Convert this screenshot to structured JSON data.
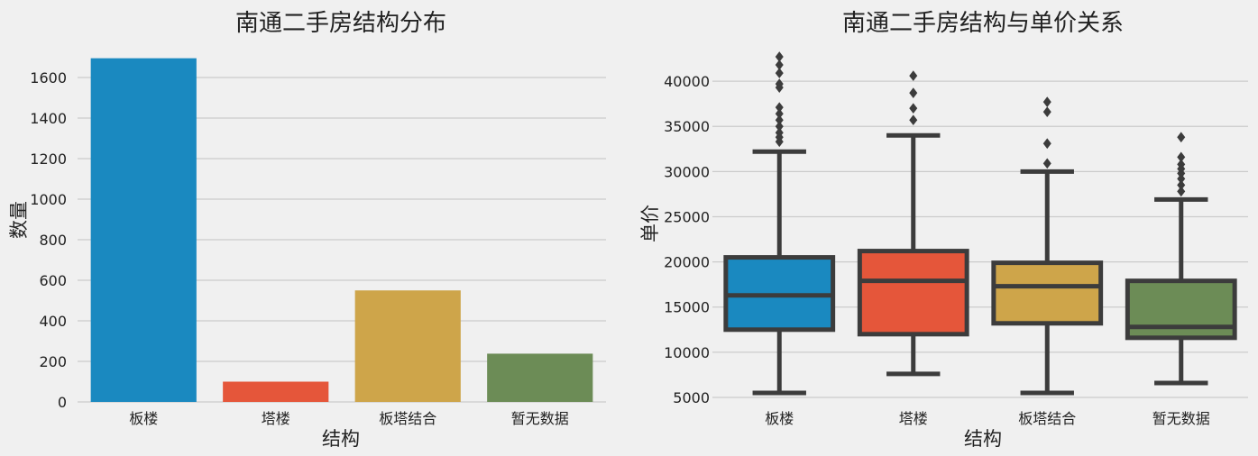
{
  "chart_data": [
    {
      "type": "bar",
      "title": "南通二手房结构分布",
      "xlabel": "结构",
      "ylabel": "数量",
      "categories": [
        "板楼",
        "塔楼",
        "板塔结合",
        "暂无数据"
      ],
      "values": [
        1695,
        100,
        550,
        238
      ],
      "ylim": [
        0,
        1760
      ],
      "yticks": [
        0,
        200,
        400,
        600,
        800,
        1000,
        1200,
        1400,
        1600
      ],
      "colors": [
        "#1a89c0",
        "#e5563a",
        "#cea54a",
        "#6c8c56"
      ],
      "grid": true
    },
    {
      "type": "box",
      "title": "南通二手房结构与单价关系",
      "xlabel": "结构",
      "ylabel": "单价",
      "categories": [
        "板楼",
        "塔楼",
        "板塔结合",
        "暂无数据"
      ],
      "ylim": [
        4500,
        44000
      ],
      "yticks": [
        5000,
        10000,
        15000,
        20000,
        25000,
        30000,
        35000,
        40000
      ],
      "colors": [
        "#1a89c0",
        "#e5563a",
        "#cea54a",
        "#6c8c56"
      ],
      "grid": true,
      "boxes": [
        {
          "min": 5500,
          "q1": 12500,
          "median": 16300,
          "q3": 20500,
          "max": 32200,
          "outliers": [
            33300,
            33800,
            34300,
            35000,
            35700,
            36400,
            37100,
            39300,
            39700,
            40900,
            41800,
            42700
          ]
        },
        {
          "min": 7600,
          "q1": 12000,
          "median": 17900,
          "q3": 21200,
          "max": 34000,
          "outliers": [
            35700,
            37000,
            38700,
            40600
          ]
        },
        {
          "min": 5500,
          "q1": 13200,
          "median": 17300,
          "q3": 19900,
          "max": 30000,
          "outliers": [
            30900,
            33100,
            36600,
            37700
          ]
        },
        {
          "min": 6600,
          "q1": 11600,
          "median": 12800,
          "q3": 17900,
          "max": 26900,
          "outliers": [
            27800,
            28500,
            29200,
            29800,
            30300,
            30800,
            31600,
            33800
          ]
        }
      ]
    }
  ]
}
